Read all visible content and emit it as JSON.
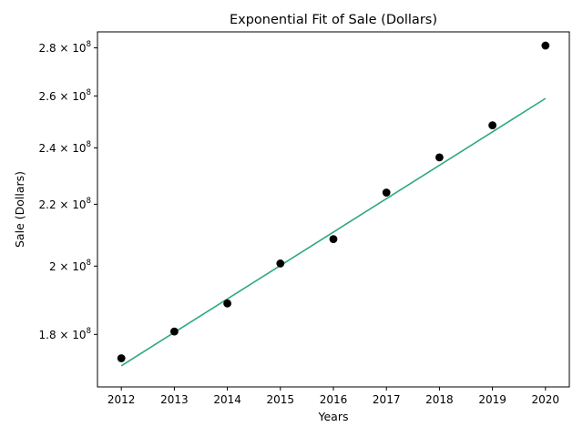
{
  "chart_data": {
    "type": "scatter",
    "title": "Exponential Fit of Sale (Dollars)",
    "xlabel": "Years",
    "ylabel": "Sale (Dollars)",
    "y_scale": "log",
    "xlim": [
      2011.55,
      2020.45
    ],
    "ylim": [
      166000000,
      287000000
    ],
    "x_ticks": [
      2012,
      2013,
      2014,
      2015,
      2016,
      2017,
      2018,
      2019,
      2020
    ],
    "y_ticks": [
      {
        "value": 180000000,
        "mantissa": "1.8",
        "exp": "8"
      },
      {
        "value": 200000000,
        "mantissa": "2",
        "exp": "8"
      },
      {
        "value": 220000000,
        "mantissa": "2.2",
        "exp": "8"
      },
      {
        "value": 240000000,
        "mantissa": "2.4",
        "exp": "8"
      },
      {
        "value": 260000000,
        "mantissa": "2.6",
        "exp": "8"
      },
      {
        "value": 280000000,
        "mantissa": "2.8",
        "exp": "8"
      }
    ],
    "grid": false,
    "series": [
      {
        "kind": "points",
        "color": "#000000",
        "x": [
          2012,
          2013,
          2014,
          2015,
          2016,
          2017,
          2018,
          2019,
          2020
        ],
        "y": [
          173500000,
          180800000,
          188800000,
          200800000,
          208500000,
          224000000,
          236500000,
          248500000,
          281000000
        ]
      },
      {
        "kind": "fit-line",
        "color": "#2ca87f",
        "x": [
          2012,
          2020
        ],
        "y": [
          171500000,
          259000000
        ]
      }
    ]
  }
}
